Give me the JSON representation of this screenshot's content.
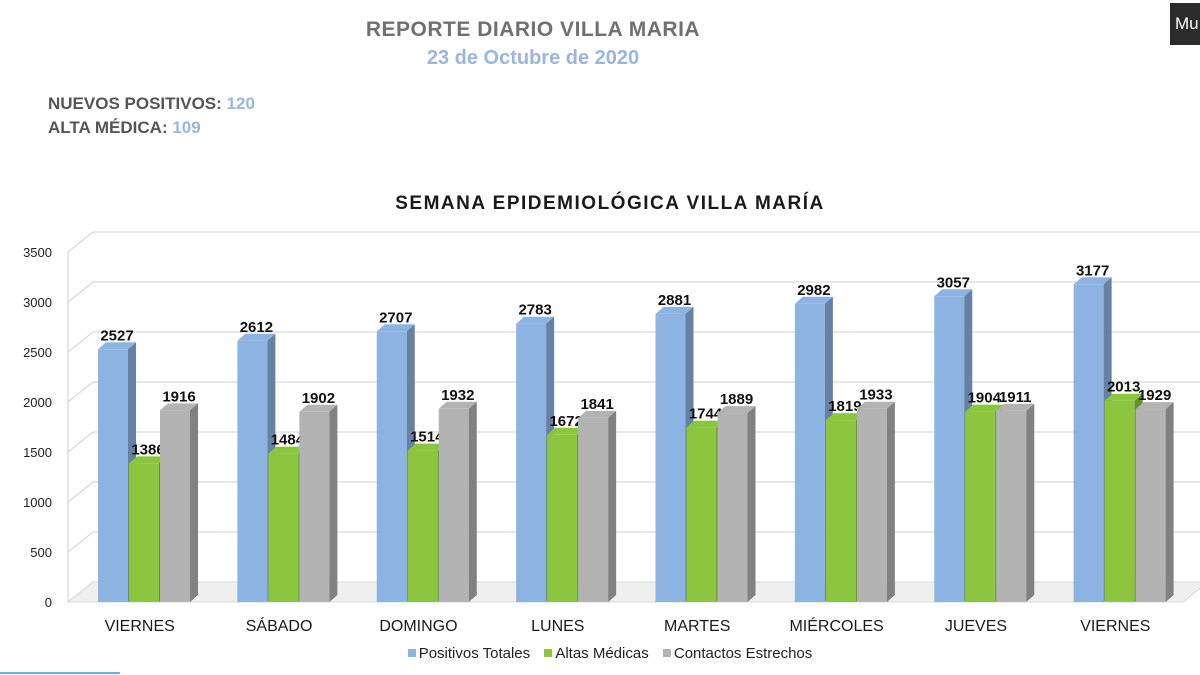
{
  "report": {
    "title": "REPORTE DIARIO VILLA MARIA",
    "date": "23 de Octubre de 2020"
  },
  "stats": {
    "nuevos_label": "NUEVOS POSITIVOS:",
    "nuevos_value": "120",
    "alta_label": "ALTA MÉDICA:",
    "alta_value": "109"
  },
  "corner_tab": {
    "label": "Mu"
  },
  "colors": {
    "title_gray": "#707070",
    "date_blue": "#9ab6de",
    "positivos": "#8db3e2",
    "altas": "#8cc63f",
    "contactos": "#b3b3b3"
  },
  "chart_data": {
    "type": "bar",
    "title": "SEMANA EPIDEMIOLÓGICA VILLA MARÍA",
    "categories": [
      "VIERNES",
      "SÁBADO",
      "DOMINGO",
      "LUNES",
      "MARTES",
      "MIÉRCOLES",
      "JUEVES",
      "VIERNES"
    ],
    "series": [
      {
        "name": "Positivos Totales",
        "color": "#8db3e2",
        "values": [
          2527,
          2612,
          2707,
          2783,
          2881,
          2982,
          3057,
          3177
        ]
      },
      {
        "name": "Altas Médicas",
        "color": "#8cc63f",
        "values": [
          1386,
          1484,
          1514,
          1672,
          1744,
          1819,
          1904,
          2013
        ]
      },
      {
        "name": "Contactos Estrechos",
        "color": "#b3b3b3",
        "values": [
          1916,
          1902,
          1932,
          1841,
          1889,
          1933,
          1911,
          1929
        ]
      }
    ],
    "ylim": [
      0,
      3500
    ],
    "yticks": [
      0,
      500,
      1000,
      1500,
      2000,
      2500,
      3000,
      3500
    ],
    "grid": true,
    "legend_position": "bottom",
    "three_d": true
  }
}
